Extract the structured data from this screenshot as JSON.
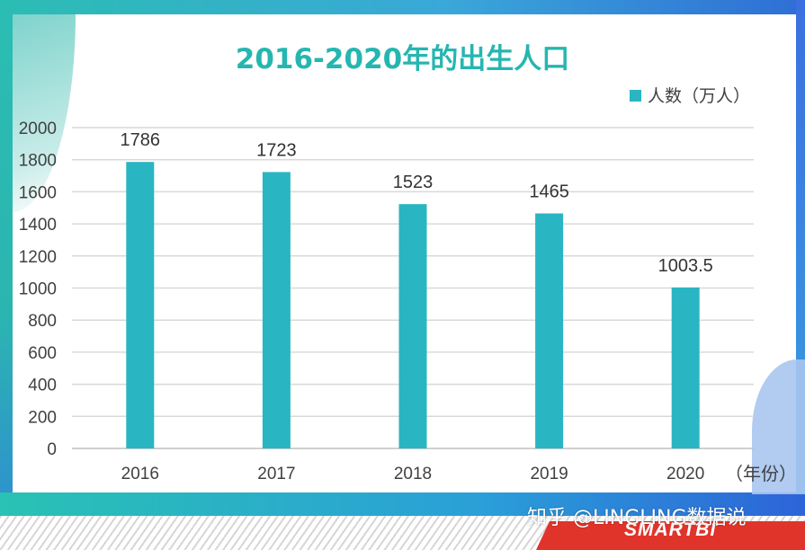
{
  "chart_data": {
    "type": "bar",
    "title": "2016-2020年的出生人口",
    "categories": [
      "2016",
      "2017",
      "2018",
      "2019",
      "2020"
    ],
    "series": [
      {
        "name": "人数（万人）",
        "values": [
          1786,
          1723,
          1523,
          1465,
          1003.5
        ]
      }
    ],
    "data_labels": [
      "1786",
      "1723",
      "1523",
      "1465",
      "1003.5"
    ],
    "xlabel": "（年份）",
    "ylabel": "",
    "ylim": [
      0,
      2000
    ],
    "yticks": [
      0,
      200,
      400,
      600,
      800,
      1000,
      1200,
      1400,
      1600,
      1800,
      2000
    ],
    "grid": true,
    "legend_position": "top-right",
    "bar_color": "#2ab5c3"
  },
  "watermark": "知乎 @LINGLING数据说",
  "brand": "SMARTBI"
}
